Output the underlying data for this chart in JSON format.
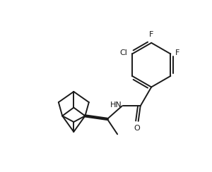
{
  "background_color": "#ffffff",
  "line_color": "#1a1a1a",
  "text_color": "#1a1a1a",
  "line_width": 1.4,
  "font_size": 8.0,
  "figsize": [
    3.0,
    2.44
  ],
  "dpi": 100,
  "xlim": [
    0,
    10
  ],
  "ylim": [
    0,
    8.1
  ]
}
